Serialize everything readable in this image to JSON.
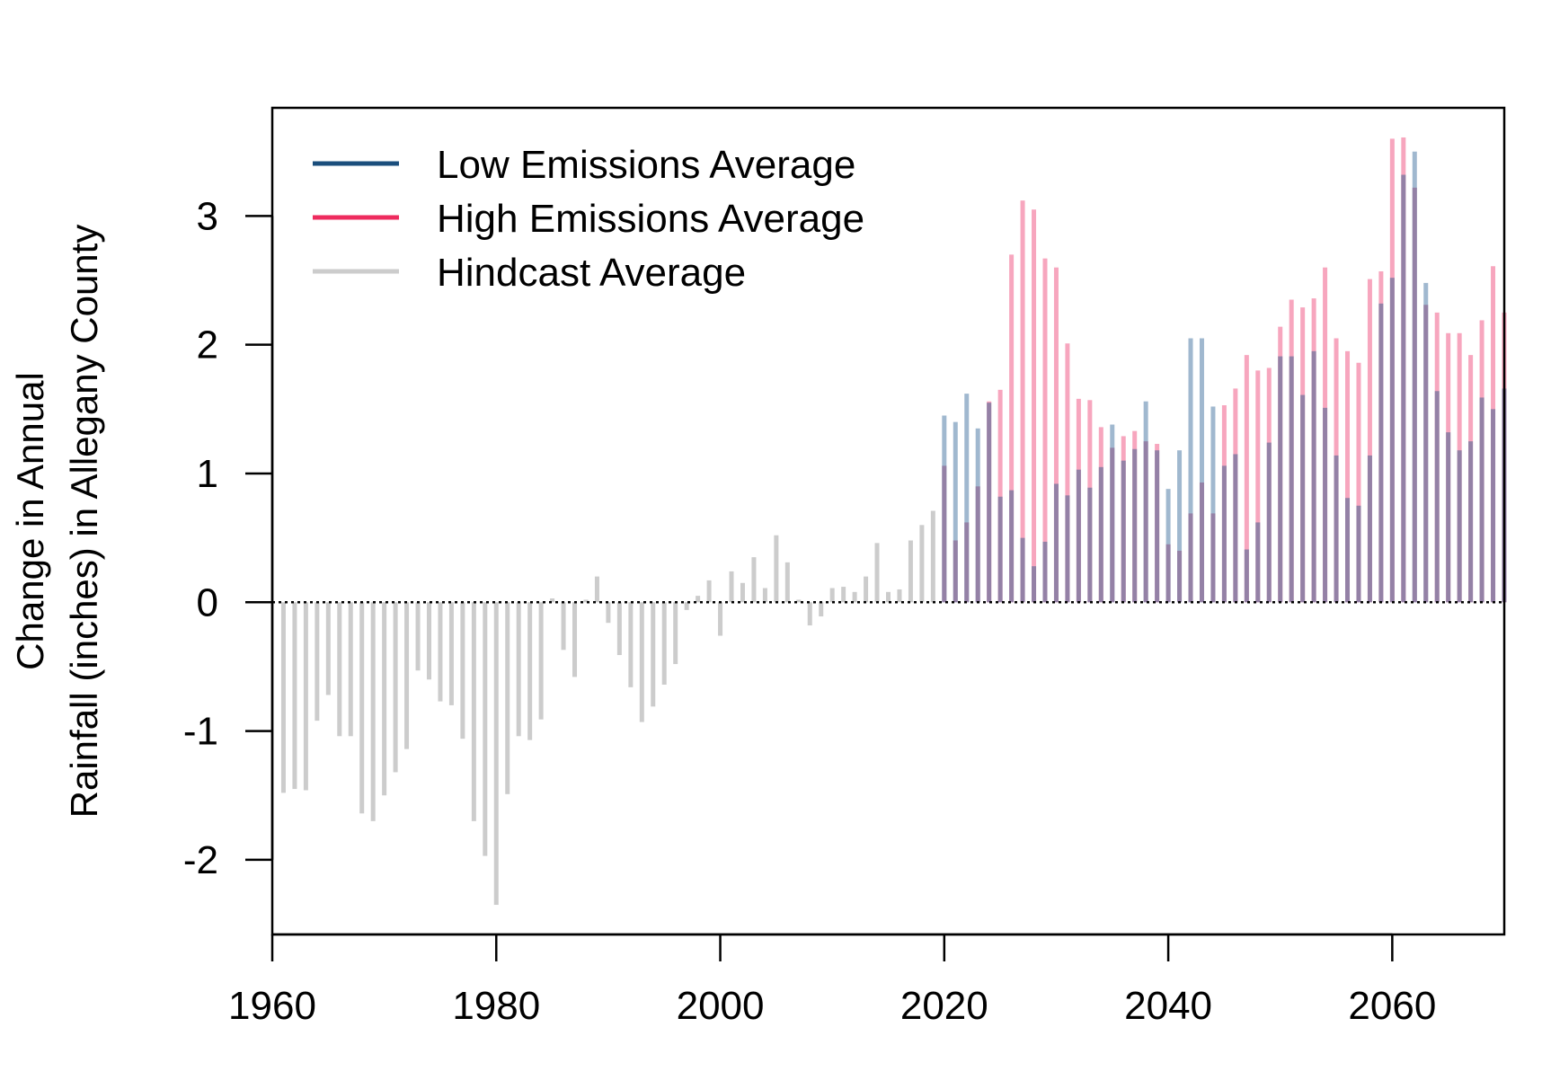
{
  "chart_data": {
    "type": "bar",
    "title": "",
    "xlabel": "",
    "ylabel_lines": [
      "Change in Annual",
      "Rainfall (inches) in Allegany County"
    ],
    "xlim": [
      1960,
      2070
    ],
    "ylim": [
      -2.6,
      3.8
    ],
    "x_ticks": [
      "1960",
      "1980",
      "2000",
      "2020",
      "2040",
      "2060"
    ],
    "y_ticks": [
      "-2",
      "-1",
      "0",
      "1",
      "2",
      "3"
    ],
    "reference_line": 0,
    "grid": false,
    "legend_position": "top-left",
    "colors": {
      "low": "#1a4e7c",
      "low_bar": "#a0b8cf",
      "high": "#ee2b5e",
      "high_bar": "#f7a6be",
      "overlap_bar": "#9481a6",
      "hindcast": "#cccccc"
    },
    "series": [
      {
        "name": "Low Emissions Average",
        "x": [
          2020,
          2021,
          2022,
          2023,
          2024,
          2025,
          2026,
          2027,
          2028,
          2029,
          2030,
          2031,
          2032,
          2033,
          2034,
          2035,
          2036,
          2037,
          2038,
          2039,
          2040,
          2041,
          2042,
          2043,
          2044,
          2045,
          2046,
          2047,
          2048,
          2049,
          2050,
          2051,
          2052,
          2053,
          2054,
          2055,
          2056,
          2057,
          2058,
          2059,
          2060,
          2061,
          2062,
          2063,
          2064,
          2065,
          2066,
          2067,
          2068,
          2069,
          2070
        ],
        "values": [
          1.45,
          1.4,
          1.62,
          1.35,
          1.55,
          0.82,
          0.87,
          0.5,
          0.28,
          0.47,
          0.92,
          0.83,
          1.03,
          0.89,
          1.05,
          1.38,
          1.1,
          1.19,
          1.56,
          1.18,
          0.88,
          1.18,
          2.05,
          2.05,
          1.52,
          1.06,
          1.15,
          0.41,
          0.62,
          1.24,
          1.91,
          1.91,
          1.61,
          1.95,
          1.51,
          1.14,
          0.81,
          0.75,
          1.14,
          2.32,
          2.52,
          3.32,
          3.5,
          2.48,
          1.64,
          1.32,
          1.18,
          1.25,
          1.59,
          1.5,
          1.66
        ]
      },
      {
        "name": "High Emissions Average",
        "x": [
          2020,
          2021,
          2022,
          2023,
          2024,
          2025,
          2026,
          2027,
          2028,
          2029,
          2030,
          2031,
          2032,
          2033,
          2034,
          2035,
          2036,
          2037,
          2038,
          2039,
          2040,
          2041,
          2042,
          2043,
          2044,
          2045,
          2046,
          2047,
          2048,
          2049,
          2050,
          2051,
          2052,
          2053,
          2054,
          2055,
          2056,
          2057,
          2058,
          2059,
          2060,
          2061,
          2062,
          2063,
          2064,
          2065,
          2066,
          2067,
          2068,
          2069,
          2070
        ],
        "values": [
          1.06,
          0.48,
          0.62,
          0.9,
          1.56,
          1.65,
          2.7,
          3.12,
          3.05,
          2.67,
          2.6,
          2.01,
          1.58,
          1.57,
          1.36,
          1.2,
          1.29,
          1.33,
          1.25,
          1.23,
          0.45,
          0.4,
          0.69,
          0.93,
          0.69,
          1.53,
          1.66,
          1.92,
          1.8,
          1.82,
          2.14,
          2.35,
          2.29,
          2.36,
          2.6,
          2.05,
          1.95,
          1.86,
          2.51,
          2.57,
          3.6,
          3.61,
          3.22,
          2.31,
          2.25,
          2.09,
          2.09,
          1.92,
          2.19,
          2.61,
          2.25
        ]
      },
      {
        "name": "Hindcast Average",
        "x": [
          1961,
          1962,
          1963,
          1964,
          1965,
          1966,
          1967,
          1968,
          1969,
          1970,
          1971,
          1972,
          1973,
          1974,
          1975,
          1976,
          1977,
          1978,
          1979,
          1980,
          1981,
          1982,
          1983,
          1984,
          1985,
          1986,
          1987,
          1988,
          1989,
          1990,
          1991,
          1992,
          1993,
          1994,
          1995,
          1996,
          1997,
          1998,
          1999,
          2000,
          2001,
          2002,
          2003,
          2004,
          2005,
          2006,
          2007,
          2008,
          2009,
          2010,
          2011,
          2012,
          2013,
          2014,
          2015,
          2016,
          2017,
          2018,
          2019
        ],
        "values": [
          -1.48,
          -1.45,
          -1.46,
          -0.92,
          -0.72,
          -1.04,
          -1.04,
          -1.64,
          -1.7,
          -1.5,
          -1.32,
          -1.14,
          -0.53,
          -0.6,
          -0.77,
          -0.8,
          -1.06,
          -1.7,
          -1.97,
          -2.35,
          -1.49,
          -1.04,
          -1.07,
          -0.91,
          0.03,
          -0.37,
          -0.58,
          0.02,
          0.2,
          -0.16,
          -0.41,
          -0.66,
          -0.93,
          -0.81,
          -0.64,
          -0.48,
          -0.06,
          0.05,
          0.17,
          -0.26,
          0.24,
          0.15,
          0.35,
          0.11,
          0.52,
          0.31,
          0.02,
          -0.18,
          -0.11,
          0.11,
          0.12,
          0.08,
          0.2,
          0.46,
          0.08,
          0.1,
          0.48,
          0.6,
          0.71
        ]
      }
    ]
  }
}
